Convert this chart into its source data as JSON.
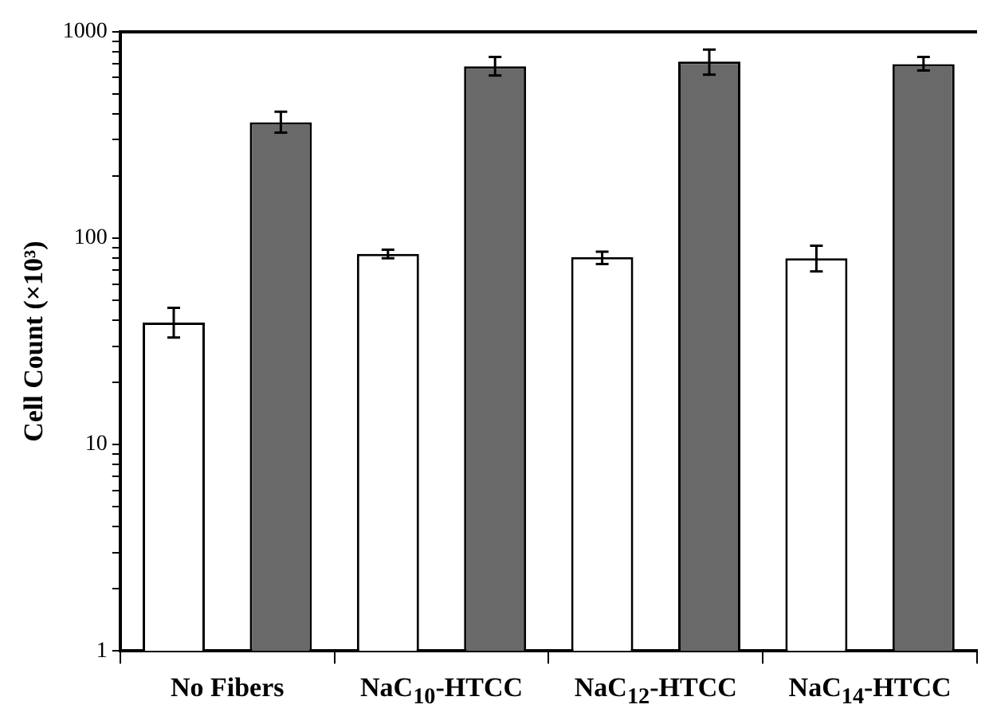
{
  "chart_data": {
    "type": "bar",
    "ylabel": "Cell Count (×10³)",
    "categories": [
      "No Fibers",
      "NaC$_{10}$-HTCC",
      "NaC$_{12}$-HTCC",
      "NaC$_{14}$-HTCC"
    ],
    "series": [
      {
        "color": "#ffffff",
        "values": [
          39,
          84,
          81,
          80
        ],
        "errors": [
          [
            33,
            46
          ],
          [
            80,
            88
          ],
          [
            75,
            86
          ],
          [
            69,
            92
          ]
        ]
      },
      {
        "color": "#696969",
        "values": [
          365,
          681,
          718,
          697
        ],
        "errors": [
          [
            325,
            410
          ],
          [
            615,
            755
          ],
          [
            620,
            820
          ],
          [
            650,
            755
          ]
        ]
      }
    ],
    "log": "y",
    "ylim": [
      1,
      1000
    ],
    "yticks": [
      1,
      {
        "value": 2,
        "label": null
      },
      {
        "value": 3,
        "label": null
      },
      {
        "value": 4,
        "label": null
      },
      {
        "value": 5,
        "label": null
      },
      {
        "value": 6,
        "label": null
      },
      {
        "value": 7,
        "label": null
      },
      {
        "value": 8,
        "label": null
      },
      {
        "value": 9,
        "label": null
      },
      10,
      {
        "value": 20,
        "label": null
      },
      {
        "value": 30,
        "label": null
      },
      {
        "value": 40,
        "label": null
      },
      {
        "value": 50,
        "label": null
      },
      {
        "value": 60,
        "label": null
      },
      {
        "value": 70,
        "label": null
      },
      {
        "value": 80,
        "label": null
      },
      {
        "value": 90,
        "label": null
      },
      100,
      {
        "value": 200,
        "label": null
      },
      {
        "value": 300,
        "label": null
      },
      {
        "value": 400,
        "label": null
      },
      {
        "value": 500,
        "label": null
      },
      {
        "value": 600,
        "label": null
      },
      {
        "value": 700,
        "label": null
      },
      {
        "value": 800,
        "label": null
      },
      {
        "value": 900,
        "label": null
      },
      1000
    ],
    "grid": false,
    "legend": false
  }
}
